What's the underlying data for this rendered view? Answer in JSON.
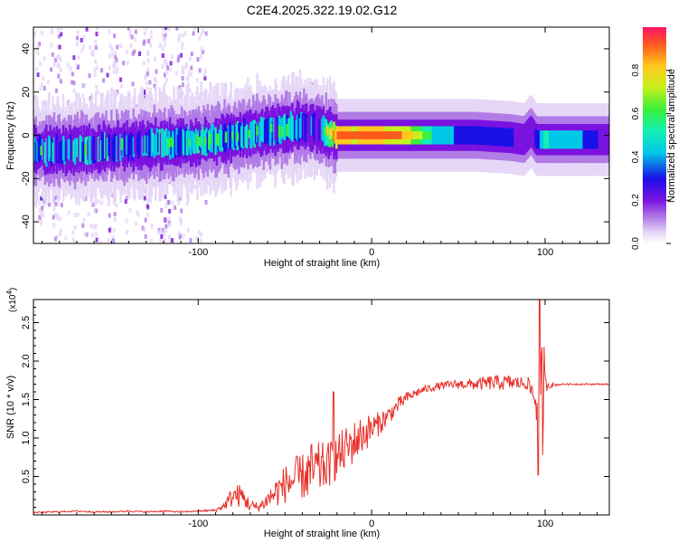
{
  "title": "C2E4.2025.322.19.02.G12",
  "colors": {
    "snr_line": "#e8302a",
    "spectrogram_scale": [
      "#ffffff",
      "#e6d7f7",
      "#b27ce6",
      "#7a12e0",
      "#1a10e8",
      "#00c8e6",
      "#14f0b4",
      "#3af03a",
      "#c8f01e",
      "#ffc81e",
      "#ff5a1e",
      "#ff1464"
    ]
  },
  "chart_data": [
    {
      "type": "heatmap",
      "title": "C2E4.2025.322.19.02.G12",
      "xlabel": "Height of straight line (km)",
      "ylabel": "Frequency (Hz)",
      "xlim": [
        -195,
        137
      ],
      "ylim": [
        -50,
        50
      ],
      "xticks": [
        -100,
        0,
        100
      ],
      "xtick_labels": [
        "-100",
        "0",
        "100"
      ],
      "yticks": [
        -40,
        -20,
        0,
        20,
        40
      ],
      "ytick_labels": [
        "-40",
        "-20",
        "0",
        "20",
        "40"
      ],
      "colorbar": {
        "label": "Normalized spectral amplitude",
        "range": [
          0,
          1
        ],
        "ticks": [
          0,
          0.2,
          0.4,
          0.6,
          0.8
        ],
        "tick_labels": [
          "0.0",
          "0.2",
          "0.4",
          "0.6",
          "0.8"
        ]
      },
      "ridge": {
        "description": "dominant frequency ridge vs height",
        "x": [
          -195,
          -180,
          -160,
          -140,
          -120,
          -100,
          -90,
          -80,
          -70,
          -60,
          -50,
          -40,
          -30,
          -25,
          -20,
          -10,
          0,
          20,
          40,
          60,
          80,
          88,
          92,
          95,
          100,
          120,
          137
        ],
        "y": [
          -7,
          -7,
          -6,
          -5,
          -4,
          -3,
          -2,
          -1,
          1,
          2,
          3,
          4,
          3,
          1,
          0,
          0,
          0,
          0,
          0,
          0,
          -1,
          -2,
          2,
          -2,
          -2,
          -2,
          -2
        ],
        "amplitude": [
          0.5,
          0.45,
          0.5,
          0.45,
          0.5,
          0.55,
          0.55,
          0.5,
          0.5,
          0.45,
          0.5,
          0.45,
          0.4,
          0.7,
          0.95,
          0.9,
          0.95,
          0.85,
          0.5,
          0.45,
          0.4,
          0.3,
          0.3,
          0.4,
          0.6,
          0.5,
          0.3
        ]
      },
      "notes": [
        "scattered low-amplitude noise for height < -95 km",
        "isolated spot near (-35 km, 23 Hz)"
      ]
    },
    {
      "type": "line",
      "xlabel": "Height of straight line (km)",
      "ylabel": "SNR (10 * v/v)",
      "y_multiplier": "(x10",
      "y_multiplier_exp": "4",
      "y_multiplier_close": ")",
      "xlim": [
        -195,
        137
      ],
      "ylim": [
        0,
        2.8
      ],
      "xticks": [
        -100,
        0,
        100
      ],
      "xtick_labels": [
        "-100",
        "0",
        "100"
      ],
      "yticks": [
        0.5,
        1.0,
        1.5,
        2.0,
        2.5
      ],
      "ytick_labels": [
        "0.5",
        "1.0",
        "1.5",
        "2.0",
        "2.5"
      ],
      "envelope": {
        "x": [
          -195,
          -170,
          -160,
          -150,
          -140,
          -130,
          -120,
          -110,
          -100,
          -90,
          -85,
          -80,
          -75,
          -70,
          -65,
          -60,
          -55,
          -50,
          -45,
          -40,
          -35,
          -30,
          -25,
          -20,
          -15,
          -10,
          -5,
          0,
          5,
          10,
          15,
          20,
          25,
          30,
          40,
          50,
          60,
          70,
          80,
          90,
          95,
          97,
          99,
          100,
          105,
          110,
          120,
          137
        ],
        "base": [
          0.03,
          0.05,
          0.04,
          0.04,
          0.05,
          0.04,
          0.05,
          0.04,
          0.05,
          0.06,
          0.12,
          0.25,
          0.25,
          0.12,
          0.1,
          0.2,
          0.3,
          0.4,
          0.45,
          0.5,
          0.55,
          0.6,
          0.65,
          0.75,
          0.85,
          0.95,
          1.05,
          1.12,
          1.2,
          1.3,
          1.42,
          1.52,
          1.58,
          1.63,
          1.68,
          1.7,
          1.7,
          1.72,
          1.72,
          1.71,
          1.5,
          1.2,
          1.7,
          1.7,
          1.69,
          1.7,
          1.7,
          1.7
        ],
        "amp": [
          0.01,
          0.01,
          0.01,
          0.01,
          0.01,
          0.01,
          0.01,
          0.01,
          0.01,
          0.02,
          0.05,
          0.15,
          0.15,
          0.08,
          0.06,
          0.12,
          0.2,
          0.25,
          0.3,
          0.3,
          0.4,
          0.35,
          0.3,
          0.3,
          0.3,
          0.28,
          0.25,
          0.2,
          0.15,
          0.12,
          0.1,
          0.08,
          0.06,
          0.05,
          0.05,
          0.06,
          0.08,
          0.1,
          0.1,
          0.08,
          0.3,
          0.6,
          1.0,
          0.1,
          0.02,
          0.01,
          0.01,
          0.01
        ]
      },
      "features": [
        {
          "x": -170,
          "y": 0.1,
          "label": "small bump"
        },
        {
          "x": -22,
          "y": 1.6,
          "label": "spike"
        },
        {
          "x": 97,
          "y": 2.8,
          "label": "max spike"
        },
        {
          "x": 96,
          "y": 0.52,
          "label": "min dip"
        }
      ]
    }
  ]
}
